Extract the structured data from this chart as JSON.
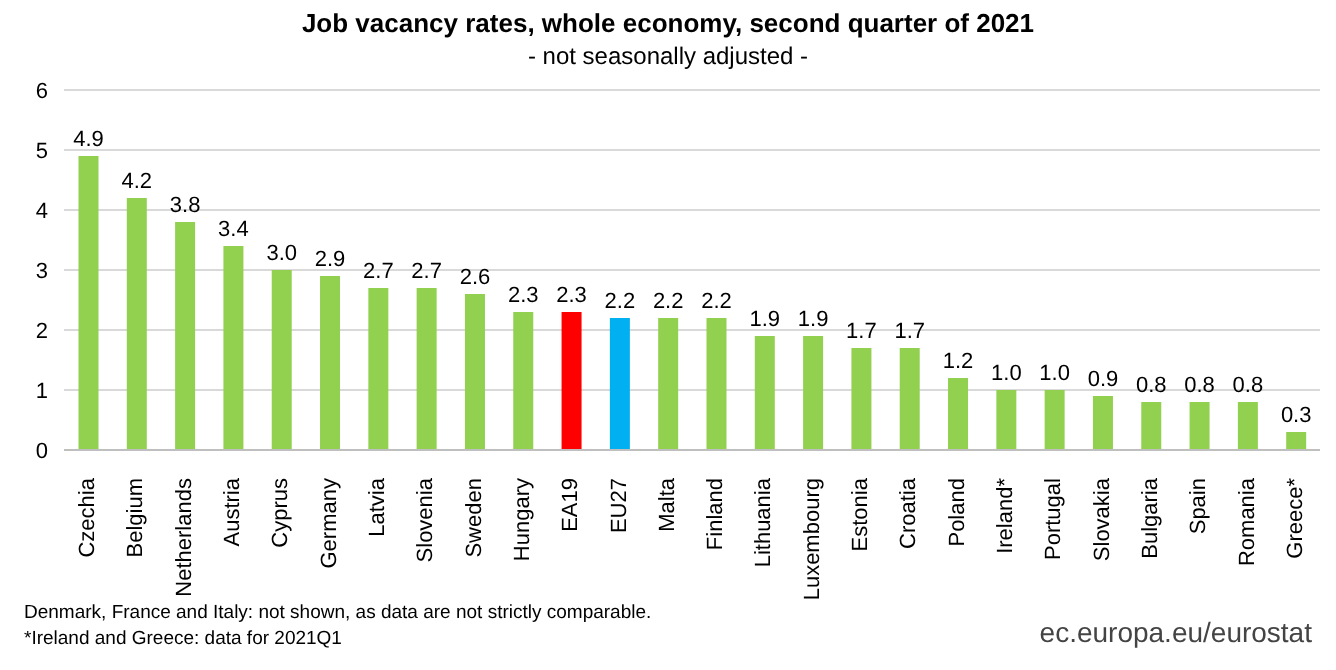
{
  "chart_data": {
    "type": "bar",
    "title": "Job vacancy rates, whole economy, second quarter of 2021",
    "subtitle": "- not seasonally adjusted -",
    "categories": [
      "Czechia",
      "Belgium",
      "Netherlands",
      "Austria",
      "Cyprus",
      "Germany",
      "Latvia",
      "Slovenia",
      "Sweden",
      "Hungary",
      "EA19",
      "EU27",
      "Malta",
      "Finland",
      "Lithuania",
      "Luxembourg",
      "Estonia",
      "Croatia",
      "Poland",
      "Ireland*",
      "Portugal",
      "Slovakia",
      "Bulgaria",
      "Spain",
      "Romania",
      "Greece*"
    ],
    "values": [
      4.9,
      4.2,
      3.8,
      3.4,
      3.0,
      2.9,
      2.7,
      2.7,
      2.6,
      2.3,
      2.3,
      2.2,
      2.2,
      2.2,
      1.9,
      1.9,
      1.7,
      1.7,
      1.2,
      1.0,
      1.0,
      0.9,
      0.8,
      0.8,
      0.8,
      0.3
    ],
    "value_labels": [
      "4.9",
      "4.2",
      "3.8",
      "3.4",
      "3.0",
      "2.9",
      "2.7",
      "2.7",
      "2.6",
      "2.3",
      "2.3",
      "2.2",
      "2.2",
      "2.2",
      "1.9",
      "1.9",
      "1.7",
      "1.7",
      "1.2",
      "1.0",
      "1.0",
      "0.9",
      "0.8",
      "0.8",
      "0.8",
      "0.3"
    ],
    "colors": [
      "#92d050",
      "#92d050",
      "#92d050",
      "#92d050",
      "#92d050",
      "#92d050",
      "#92d050",
      "#92d050",
      "#92d050",
      "#92d050",
      "#ff0000",
      "#00b0f0",
      "#92d050",
      "#92d050",
      "#92d050",
      "#92d050",
      "#92d050",
      "#92d050",
      "#92d050",
      "#92d050",
      "#92d050",
      "#92d050",
      "#92d050",
      "#92d050",
      "#92d050",
      "#92d050"
    ],
    "ylim": [
      0,
      6
    ],
    "yticks": [
      0,
      1,
      2,
      3,
      4,
      5,
      6
    ],
    "grid": "y",
    "legend": false,
    "annotations": [
      "Denmark, France and Italy: not shown, as data are not strictly comparable.",
      "*Ireland and Greece: data for 2021Q1",
      "ec.europa.eu/eurostat"
    ]
  }
}
